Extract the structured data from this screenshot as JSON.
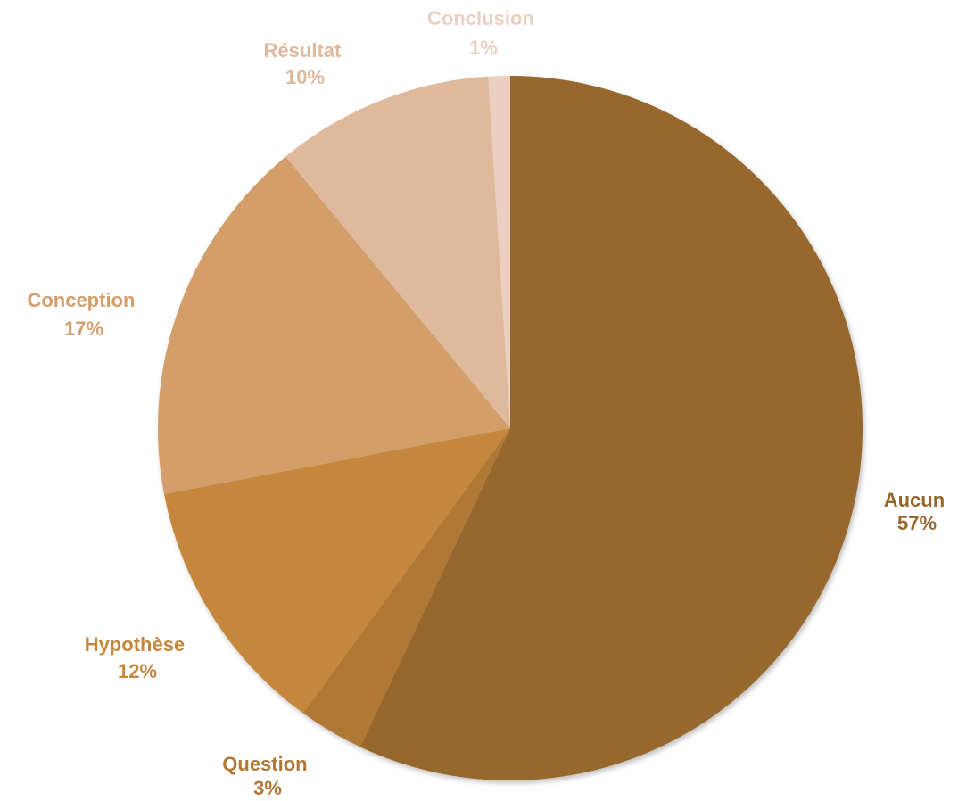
{
  "chart_data": {
    "type": "pie",
    "start_angle_deg": 0,
    "direction": "clockwise",
    "slices": [
      {
        "name": "Aucun",
        "value": 57,
        "percent_label": "57%",
        "color": "#96672D"
      },
      {
        "name": "Question",
        "value": 3,
        "percent_label": "3%",
        "color": "#B07836"
      },
      {
        "name": "Hypothèse",
        "value": 12,
        "percent_label": "12%",
        "color": "#C4873D"
      },
      {
        "name": "Conception",
        "value": 17,
        "percent_label": "17%",
        "color": "#D49E6B"
      },
      {
        "name": "Résultat",
        "value": 10,
        "percent_label": "10%",
        "color": "#DFB99C"
      },
      {
        "name": "Conclusion",
        "value": 1,
        "percent_label": "1%",
        "color": "#EBD0C2"
      }
    ]
  }
}
